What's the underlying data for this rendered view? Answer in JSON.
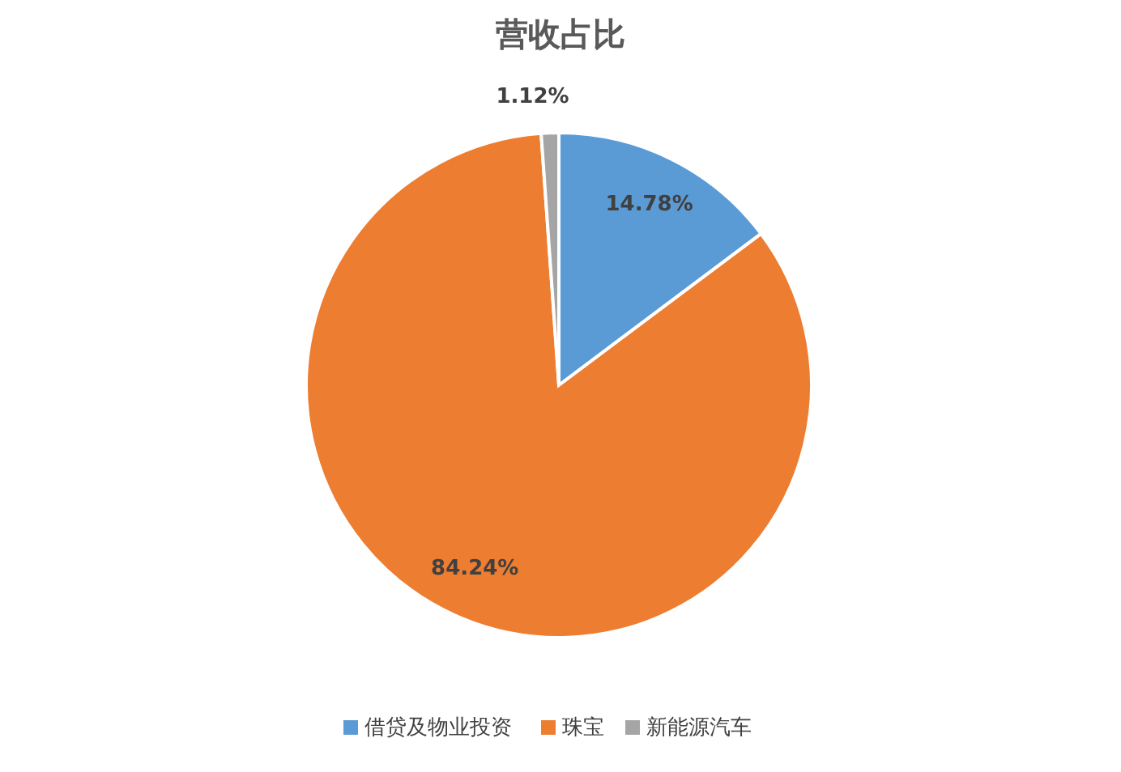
{
  "chart_data": {
    "type": "pie",
    "title": "营收占比",
    "categories": [
      "借贷及物业投资",
      "珠宝",
      "新能源汽车"
    ],
    "values": [
      14.78,
      84.24,
      1.12
    ],
    "colors": [
      "#5b9bd5",
      "#ed7d31",
      "#a5a5a5"
    ],
    "value_labels": [
      "14.78%",
      "84.24%",
      "1.12%"
    ],
    "legend": "bottom"
  }
}
